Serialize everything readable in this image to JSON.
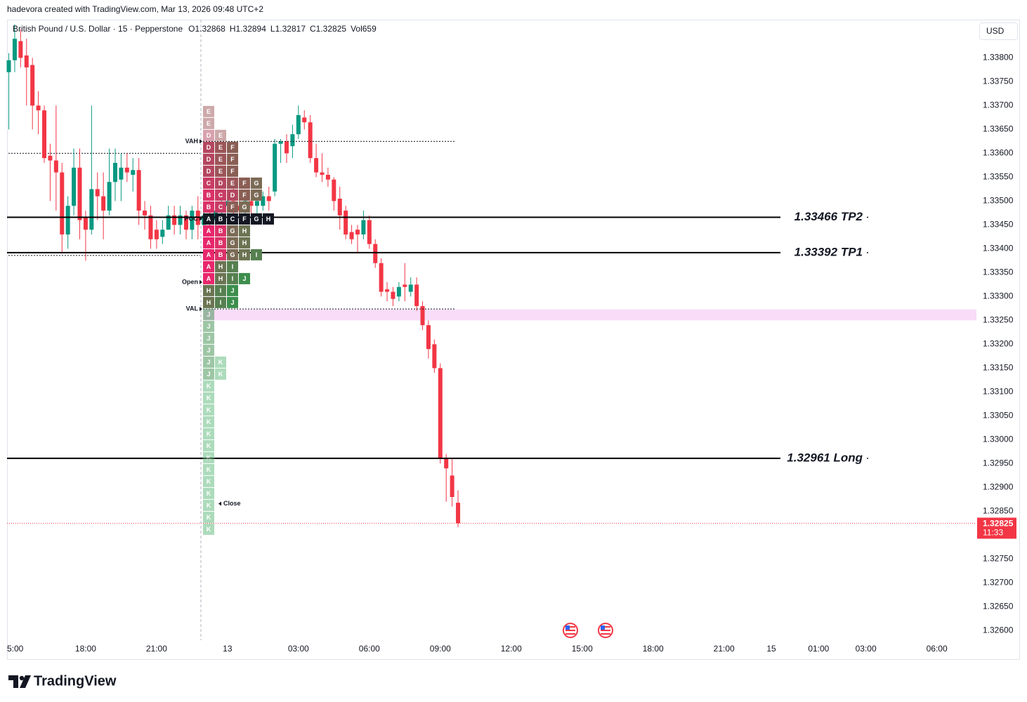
{
  "header": "hadevora created with TradingView.com, Mar 13, 2026 09:48 UTC+2",
  "footer": "TradingView",
  "chart_data": {
    "type": "candlestick",
    "legend": {
      "symbol": "British Pound / U.S. Dollar · 15 · Pepperstone",
      "ohlc_labels": [
        "O",
        "H",
        "L",
        "C"
      ],
      "volume": "Vol659"
    },
    "currency": "USD",
    "countdown": "11:33",
    "up_color": "#089981",
    "down_color": "#f23645",
    "grid": false,
    "open": [
      1.3377,
      1.33795,
      1.33835,
      1.33805,
      1.33785,
      1.337,
      1.3369,
      1.33595,
      1.33585,
      1.3356,
      1.3343,
      1.3349,
      1.3357,
      1.33465,
      1.3344,
      1.33525,
      1.3351,
      1.3348,
      1.3354,
      1.33545,
      1.3357,
      1.33555,
      1.33565,
      1.3348,
      1.3347,
      1.3344,
      1.33425,
      1.3344,
      1.3347,
      1.3345,
      1.3347,
      1.3344,
      1.3348,
      1.3345,
      1.3347,
      1.3346,
      1.3348,
      1.3349,
      1.335,
      1.3349,
      1.3348,
      1.335,
      1.3349,
      1.3349,
      1.3351,
      1.3352,
      1.3362,
      1.33625,
      1.33615,
      1.3364,
      1.33675,
      1.33665,
      1.3359,
      1.3356,
      1.33555,
      1.33545,
      1.33505,
      1.3348,
      1.33435,
      1.3344,
      1.3343,
      1.3346,
      1.3341,
      1.3337,
      1.33315,
      1.3331,
      1.333,
      1.33325,
      1.3331,
      1.33325,
      1.3328,
      1.3324,
      1.332,
      1.3315,
      1.3296,
      1.32925,
      1.32868
    ],
    "high": [
      1.3381,
      1.3387,
      1.3386,
      1.3384,
      1.338,
      1.3373,
      1.337,
      1.3362,
      1.337,
      1.3358,
      1.3351,
      1.3361,
      1.3361,
      1.3348,
      1.337,
      1.3356,
      1.3356,
      1.3361,
      1.3361,
      1.336,
      1.336,
      1.3359,
      1.3359,
      1.335,
      1.3349,
      1.3346,
      1.3346,
      1.3349,
      1.3349,
      1.3349,
      1.3348,
      1.3349,
      1.3351,
      1.3349,
      1.335,
      1.3349,
      1.3351,
      1.3352,
      1.3353,
      1.3351,
      1.3352,
      1.3352,
      1.3351,
      1.3352,
      1.3353,
      1.3363,
      1.3363,
      1.3364,
      1.3366,
      1.337,
      1.3369,
      1.3368,
      1.3362,
      1.336,
      1.3357,
      1.3355,
      1.3353,
      1.3349,
      1.3345,
      1.3345,
      1.3348,
      1.3347,
      1.3342,
      1.3338,
      1.3333,
      1.3332,
      1.3333,
      1.3337,
      1.3334,
      1.3334,
      1.3329,
      1.3325,
      1.3321,
      1.3316,
      1.3297,
      1.3296,
      1.32894
    ],
    "low": [
      1.3365,
      1.3377,
      1.3378,
      1.337,
      1.3365,
      1.3364,
      1.3358,
      1.335,
      1.3348,
      1.3339,
      1.334,
      1.3347,
      1.3342,
      1.33375,
      1.3343,
      1.3346,
      1.3342,
      1.3347,
      1.335,
      1.335,
      1.3354,
      1.3352,
      1.3345,
      1.3344,
      1.334,
      1.334,
      1.3341,
      1.3344,
      1.3343,
      1.3343,
      1.3342,
      1.3342,
      1.3342,
      1.3343,
      1.3344,
      1.3343,
      1.3346,
      1.3346,
      1.3347,
      1.3346,
      1.3347,
      1.3347,
      1.3346,
      1.3348,
      1.3348,
      1.3351,
      1.3358,
      1.3358,
      1.3359,
      1.3363,
      1.3365,
      1.3358,
      1.3355,
      1.3354,
      1.3353,
      1.3348,
      1.3344,
      1.3342,
      1.3341,
      1.3339,
      1.3342,
      1.334,
      1.3336,
      1.333,
      1.3329,
      1.3328,
      1.3329,
      1.3329,
      1.333,
      1.3327,
      1.3323,
      1.3317,
      1.3314,
      1.3295,
      1.3287,
      1.3286,
      1.32817
    ],
    "close": [
      1.33795,
      1.3384,
      1.338,
      1.3378,
      1.337,
      1.3369,
      1.3359,
      1.33585,
      1.3356,
      1.3343,
      1.3349,
      1.3357,
      1.3346,
      1.3344,
      1.33525,
      1.3351,
      1.3348,
      1.3354,
      1.3358,
      1.3357,
      1.3356,
      1.33565,
      1.3348,
      1.3347,
      1.3342,
      1.3342,
      1.3344,
      1.3347,
      1.3345,
      1.3347,
      1.3344,
      1.3348,
      1.3345,
      1.3347,
      1.3346,
      1.3348,
      1.3349,
      1.335,
      1.3349,
      1.3348,
      1.335,
      1.3349,
      1.335,
      1.3351,
      1.335,
      1.3362,
      1.33625,
      1.336,
      1.3364,
      1.3368,
      1.33665,
      1.3359,
      1.3356,
      1.33555,
      1.33545,
      1.335,
      1.3347,
      1.3343,
      1.3342,
      1.3343,
      1.3346,
      1.3341,
      1.3337,
      1.3331,
      1.3331,
      1.33295,
      1.3332,
      1.3332,
      1.33325,
      1.3328,
      1.3324,
      1.3319,
      1.3315,
      1.3296,
      1.3294,
      1.3288,
      1.32825
    ],
    "xlim": [
      -0.3,
      163.7
    ],
    "xticks": [
      {
        "value": 1,
        "label": "5:00"
      },
      {
        "value": 13,
        "label": "18:00"
      },
      {
        "value": 25,
        "label": "21:00"
      },
      {
        "value": 37,
        "label": "13"
      },
      {
        "value": 49,
        "label": "03:00"
      },
      {
        "value": 61,
        "label": "06:00"
      },
      {
        "value": 73,
        "label": "09:00"
      },
      {
        "value": 85,
        "label": "12:00"
      },
      {
        "value": 97,
        "label": "15:00"
      },
      {
        "value": 109,
        "label": "18:00"
      },
      {
        "value": 121,
        "label": "21:00"
      },
      {
        "value": 129,
        "label": "15"
      },
      {
        "value": 137,
        "label": "01:00"
      },
      {
        "value": 145,
        "label": "03:00"
      },
      {
        "value": 157,
        "label": "06:00"
      }
    ],
    "ylim": [
      1.3258,
      1.3388
    ],
    "yticks": [
      {
        "value": 1.326,
        "label": "1.32600"
      },
      {
        "value": 1.3265,
        "label": "1.32650"
      },
      {
        "value": 1.327,
        "label": "1.32700"
      },
      {
        "value": 1.3275,
        "label": "1.32750"
      },
      {
        "value": 1.328,
        "label": "1.32800"
      },
      {
        "value": 1.3285,
        "label": "1.32850"
      },
      {
        "value": 1.329,
        "label": "1.32900"
      },
      {
        "value": 1.3295,
        "label": "1.32950"
      },
      {
        "value": 1.33,
        "label": "1.33000"
      },
      {
        "value": 1.3305,
        "label": "1.33050"
      },
      {
        "value": 1.331,
        "label": "1.33100"
      },
      {
        "value": 1.3315,
        "label": "1.33150"
      },
      {
        "value": 1.332,
        "label": "1.33200"
      },
      {
        "value": 1.3325,
        "label": "1.33250"
      },
      {
        "value": 1.333,
        "label": "1.33300"
      },
      {
        "value": 1.3335,
        "label": "1.33350"
      },
      {
        "value": 1.334,
        "label": "1.33400"
      },
      {
        "value": 1.3345,
        "label": "1.33450"
      },
      {
        "value": 1.335,
        "label": "1.33500"
      },
      {
        "value": 1.3355,
        "label": "1.33550"
      },
      {
        "value": 1.336,
        "label": "1.33600"
      },
      {
        "value": 1.3365,
        "label": "1.33650"
      },
      {
        "value": 1.337,
        "label": "1.33700"
      },
      {
        "value": 1.3375,
        "label": "1.33750"
      },
      {
        "value": 1.338,
        "label": "1.33800"
      }
    ],
    "levels": [
      {
        "value": 1.33466,
        "label": "1.33466 TP2"
      },
      {
        "value": 1.33392,
        "label": "1.33392 TP1"
      },
      {
        "value": 1.32961,
        "label": "1.32961 Long"
      }
    ],
    "prev_levels": [
      1.336,
      1.33386
    ],
    "zone": {
      "range": [
        1.3325,
        1.33273
      ],
      "color": "#f8dcf8"
    },
    "profile": {
      "vah": {
        "label": "VAH",
        "value": 1.33625
      },
      "poc": {
        "label": "POC",
        "value": 1.334625
      },
      "open": {
        "label": "Open",
        "value": 1.3333
      },
      "val": {
        "label": "VAL",
        "value": 1.33274
      },
      "close": {
        "label": "Close",
        "value": 1.32866
      },
      "letter_colors": {
        "A": "#e8266b",
        "B": "#da3268",
        "C": "#c83c64",
        "D": "#b4465f",
        "E": "#9c5558",
        "F": "#8a5e54",
        "G": "#7b6a55",
        "H": "#6a7452",
        "I": "#568050",
        "J": "#3d8e4d",
        "K": "#5cb87a"
      },
      "rows": [
        {
          "price": 1.33675,
          "letters": [
            "E"
          ]
        },
        {
          "price": 1.3365,
          "letters": [
            "E"
          ]
        },
        {
          "price": 1.33625,
          "letters": [
            "D",
            "E"
          ]
        },
        {
          "price": 1.336,
          "letters": [
            "D",
            "E",
            "F"
          ]
        },
        {
          "price": 1.33575,
          "letters": [
            "D",
            "E",
            "F"
          ]
        },
        {
          "price": 1.3355,
          "letters": [
            "D",
            "E",
            "F"
          ]
        },
        {
          "price": 1.33525,
          "letters": [
            "C",
            "D",
            "E",
            "F",
            "G"
          ]
        },
        {
          "price": 1.335,
          "letters": [
            "B",
            "C",
            "D",
            "F",
            "G"
          ]
        },
        {
          "price": 1.33475,
          "letters": [
            "B",
            "C",
            "F",
            "G"
          ]
        },
        {
          "price": 1.3345,
          "letters": [
            "A",
            "B",
            "C",
            "F",
            "G",
            "H"
          ]
        },
        {
          "price": 1.33425,
          "letters": [
            "A",
            "B",
            "G",
            "H"
          ]
        },
        {
          "price": 1.334,
          "letters": [
            "A",
            "B",
            "G",
            "H"
          ]
        },
        {
          "price": 1.33375,
          "letters": [
            "A",
            "B",
            "G",
            "H",
            "I"
          ]
        },
        {
          "price": 1.3335,
          "letters": [
            "A",
            "H",
            "I"
          ]
        },
        {
          "price": 1.33325,
          "letters": [
            "A",
            "H",
            "I",
            "J"
          ]
        },
        {
          "price": 1.333,
          "letters": [
            "H",
            "I",
            "J"
          ]
        },
        {
          "price": 1.33275,
          "letters": [
            "H",
            "I",
            "J"
          ]
        },
        {
          "price": 1.3325,
          "letters": [
            "J"
          ]
        },
        {
          "price": 1.33225,
          "letters": [
            "J"
          ]
        },
        {
          "price": 1.332,
          "letters": [
            "J"
          ]
        },
        {
          "price": 1.33175,
          "letters": [
            "J"
          ]
        },
        {
          "price": 1.3315,
          "letters": [
            "J",
            "K"
          ]
        },
        {
          "price": 1.33125,
          "letters": [
            "J",
            "K"
          ]
        },
        {
          "price": 1.331,
          "letters": [
            "K"
          ]
        },
        {
          "price": 1.33075,
          "letters": [
            "K"
          ]
        },
        {
          "price": 1.3305,
          "letters": [
            "K"
          ]
        },
        {
          "price": 1.33025,
          "letters": [
            "K"
          ]
        },
        {
          "price": 1.33,
          "letters": [
            "K"
          ]
        },
        {
          "price": 1.32975,
          "letters": [
            "K"
          ]
        },
        {
          "price": 1.3295,
          "letters": [
            "K"
          ]
        },
        {
          "price": 1.32925,
          "letters": [
            "K"
          ]
        },
        {
          "price": 1.329,
          "letters": [
            "K"
          ]
        },
        {
          "price": 1.32875,
          "letters": [
            "K"
          ]
        },
        {
          "price": 1.3285,
          "letters": [
            "K"
          ]
        },
        {
          "price": 1.32825,
          "letters": [
            "K"
          ]
        },
        {
          "price": 1.328,
          "letters": [
            "K"
          ]
        }
      ]
    }
  }
}
